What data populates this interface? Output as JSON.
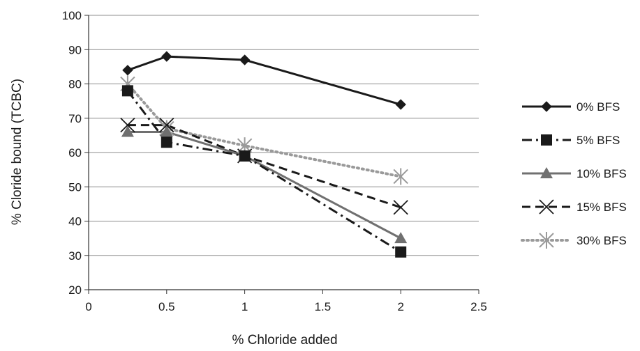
{
  "chart_data": {
    "type": "line",
    "title": "",
    "xlabel": "% Chloride added",
    "ylabel": "% Cloride bound (TCBC)",
    "xlim": [
      0,
      2.5
    ],
    "ylim": [
      20,
      100
    ],
    "x_ticks": [
      "0",
      "0.5",
      "1",
      "1.5",
      "2",
      "2.5"
    ],
    "y_ticks": [
      "20",
      "30",
      "40",
      "50",
      "60",
      "70",
      "80",
      "90",
      "100"
    ],
    "grid": "horizontal",
    "legend_position": "right",
    "x": [
      0.25,
      0.5,
      1,
      2
    ],
    "series": [
      {
        "name": "0% BFS",
        "values": [
          84,
          88,
          87,
          74
        ],
        "color": "#1a1a1a",
        "dash": "solid",
        "marker": "diamond"
      },
      {
        "name": "5% BFS",
        "values": [
          78,
          63,
          59,
          31
        ],
        "color": "#1a1a1a",
        "dash": "dashdot",
        "marker": "square"
      },
      {
        "name": "10% BFS",
        "values": [
          66,
          66,
          59,
          35
        ],
        "color": "#707070",
        "dash": "solid",
        "marker": "triangle"
      },
      {
        "name": "15% BFS",
        "values": [
          68,
          68,
          59,
          44
        ],
        "color": "#1a1a1a",
        "dash": "longdash",
        "marker": "x"
      },
      {
        "name": "30% BFS",
        "values": [
          80,
          67,
          62,
          53
        ],
        "color": "#9a9a9a",
        "dash": "dotted",
        "marker": "star"
      }
    ]
  }
}
